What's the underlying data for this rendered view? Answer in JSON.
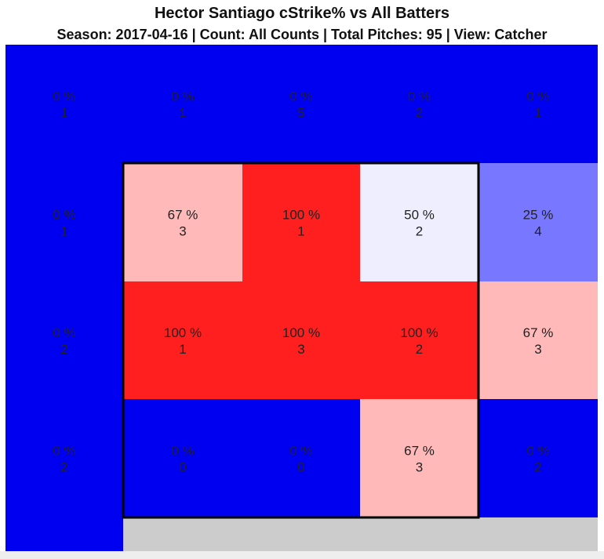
{
  "title": "Hector Santiago cStrike% vs All Batters",
  "subtitle": "Season: 2017-04-16 | Count: All Counts | Total Pitches: 95 | View: Catcher",
  "colors": {
    "blue": "#0000f0",
    "red": "#ff1f1f",
    "pink": "#ffb9b9",
    "light_lavender": "#eeeeff",
    "medium_blue": "#7777ff",
    "gray": "#cccccc",
    "border": "#000000"
  },
  "chart_data": {
    "type": "heatmap",
    "metric": "cStrike%",
    "cells": [
      {
        "row": 0,
        "col": 0,
        "pct": "0 %",
        "count": "1",
        "color": "blue"
      },
      {
        "row": 0,
        "col": 1,
        "pct": "0 %",
        "count": "1",
        "color": "blue"
      },
      {
        "row": 0,
        "col": 2,
        "pct": "0 %",
        "count": "5",
        "color": "blue"
      },
      {
        "row": 0,
        "col": 3,
        "pct": "0 %",
        "count": "2",
        "color": "blue"
      },
      {
        "row": 0,
        "col": 4,
        "pct": "0 %",
        "count": "1",
        "color": "blue"
      },
      {
        "row": 1,
        "col": 0,
        "pct": "0 %",
        "count": "1",
        "color": "blue"
      },
      {
        "row": 1,
        "col": 1,
        "pct": "67 %",
        "count": "3",
        "color": "pink"
      },
      {
        "row": 1,
        "col": 2,
        "pct": "100 %",
        "count": "1",
        "color": "red"
      },
      {
        "row": 1,
        "col": 3,
        "pct": "50 %",
        "count": "2",
        "color": "light_lavender"
      },
      {
        "row": 1,
        "col": 4,
        "pct": "25 %",
        "count": "4",
        "color": "medium_blue"
      },
      {
        "row": 2,
        "col": 0,
        "pct": "0 %",
        "count": "2",
        "color": "blue"
      },
      {
        "row": 2,
        "col": 1,
        "pct": "100 %",
        "count": "1",
        "color": "red"
      },
      {
        "row": 2,
        "col": 2,
        "pct": "100 %",
        "count": "3",
        "color": "red"
      },
      {
        "row": 2,
        "col": 3,
        "pct": "100 %",
        "count": "2",
        "color": "red"
      },
      {
        "row": 2,
        "col": 4,
        "pct": "67 %",
        "count": "3",
        "color": "pink"
      },
      {
        "row": 3,
        "col": 0,
        "pct": "0 %",
        "count": "2",
        "color": "blue"
      },
      {
        "row": 3,
        "col": 1,
        "pct": "0 %",
        "count": "0",
        "color": "blue"
      },
      {
        "row": 3,
        "col": 2,
        "pct": "0 %",
        "count": "0",
        "color": "blue"
      },
      {
        "row": 3,
        "col": 3,
        "pct": "67 %",
        "count": "3",
        "color": "pink"
      },
      {
        "row": 3,
        "col": 4,
        "pct": "0 %",
        "count": "2",
        "color": "blue"
      }
    ],
    "strike_zone": {
      "rows": [
        1,
        3
      ],
      "cols": [
        1,
        3
      ]
    }
  }
}
